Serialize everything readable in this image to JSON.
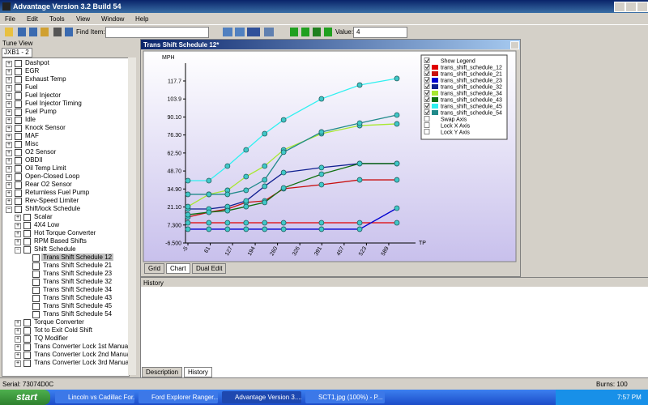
{
  "window": {
    "title": "Advantage Version 3.2 Build 54"
  },
  "menu": [
    "File",
    "Edit",
    "Tools",
    "View",
    "Window",
    "Help"
  ],
  "toolbar": {
    "find_label": "Find Item:",
    "value_label": "Value:",
    "value": "4"
  },
  "tree_view": {
    "title": "Tune View",
    "tab": "JXB1 - 2",
    "items": [
      {
        "label": "Dashpot"
      },
      {
        "label": "EGR"
      },
      {
        "label": "Exhaust Temp"
      },
      {
        "label": "Fuel"
      },
      {
        "label": "Fuel Injector"
      },
      {
        "label": "Fuel Injector Timing"
      },
      {
        "label": "Fuel Pump"
      },
      {
        "label": "Idle"
      },
      {
        "label": "Knock Sensor"
      },
      {
        "label": "MAF"
      },
      {
        "label": "Misc"
      },
      {
        "label": "O2 Sensor"
      },
      {
        "label": "OBDII"
      },
      {
        "label": "Oil Temp Limit"
      },
      {
        "label": "Open-Closed Loop"
      },
      {
        "label": "Rear O2 Sensor"
      },
      {
        "label": "Returnless Fuel Pump"
      },
      {
        "label": "Rev-Speed Limiter"
      },
      {
        "label": "Shift/lock Schedule",
        "children": [
          {
            "label": "Scalar"
          },
          {
            "label": "4X4 Low"
          },
          {
            "label": "Hot Torque Converter"
          },
          {
            "label": "RPM Based Shifts"
          },
          {
            "label": "Shift Schedule",
            "children": [
              {
                "label": "Trans Shift Schedule 12"
              },
              {
                "label": "Trans Shift Schedule 21"
              },
              {
                "label": "Trans Shift Schedule 23"
              },
              {
                "label": "Trans Shift Schedule 32"
              },
              {
                "label": "Trans Shift Schedule 34"
              },
              {
                "label": "Trans Shift Schedule 43"
              },
              {
                "label": "Trans Shift Schedule 45"
              },
              {
                "label": "Trans Shift Schedule 54"
              }
            ]
          },
          {
            "label": "Torque Converter"
          },
          {
            "label": "Tot to Exit Cold Shift"
          },
          {
            "label": "TQ Modifier"
          },
          {
            "label": "Trans Converter Lock 1st Manual Shift"
          },
          {
            "label": "Trans Converter Lock 2nd Manual Shift"
          },
          {
            "label": "Trans Converter Lock 3rd Manual Shift"
          }
        ]
      }
    ]
  },
  "chart_window": {
    "title": "Trans Shift Schedule 12*",
    "tabs": [
      "Grid",
      "Chart",
      "Dual Edit"
    ],
    "legend_toggle": "Show Legend",
    "options": [
      "Swap Axis",
      "Lock X Axis",
      "Lock Y Axis"
    ]
  },
  "chart_data": {
    "type": "line",
    "y_label": "MPH",
    "x_label": "TP",
    "x": [
      -5,
      57,
      112,
      167,
      222,
      278,
      390,
      503,
      613
    ],
    "xlim": [
      -5,
      661
    ],
    "ylim": [
      -6.5,
      130.1
    ],
    "xticks": [
      -5,
      61,
      127,
      194,
      260,
      326,
      391,
      457,
      523,
      589
    ],
    "yticks": [
      {
        "value": -6.5,
        "label": "-6.500"
      },
      {
        "value": 7.3,
        "label": "7.300"
      },
      {
        "value": 21.1,
        "label": "21.10"
      },
      {
        "value": 34.9,
        "label": "34.90"
      },
      {
        "value": 48.7,
        "label": "48.70"
      },
      {
        "value": 62.5,
        "label": "62.50"
      },
      {
        "value": 76.3,
        "label": "76.30"
      },
      {
        "value": 90.1,
        "label": "90.10"
      },
      103.9,
      117.7
    ],
    "grid": false,
    "marker_color": "#40c8c8",
    "series": [
      {
        "name": "trans_shift_schedule_12",
        "color": "#e00000",
        "values": [
          9.0,
          9.0,
          9.0,
          9.0,
          9.0,
          9.0,
          9.0,
          9.0,
          9.0
        ]
      },
      {
        "name": "trans_shift_schedule_21",
        "color": "#c81010",
        "values": [
          13.4,
          17.1,
          19.6,
          24.6,
          25.8,
          35.1,
          38.2,
          41.9,
          41.9
        ]
      },
      {
        "name": "trans_shift_schedule_23",
        "color": "#0000d0",
        "values": [
          4.1,
          4.1,
          4.1,
          4.1,
          4.1,
          4.1,
          4.1,
          4.1,
          20.2
        ]
      },
      {
        "name": "trans_shift_schedule_32",
        "color": "#102090",
        "values": [
          19.6,
          19.6,
          21.4,
          25.8,
          37.0,
          47.5,
          51.3,
          54.4,
          54.4
        ]
      },
      {
        "name": "trans_shift_schedule_34",
        "color": "#a8e830",
        "values": [
          21.4,
          30.8,
          33.9,
          44.4,
          52.5,
          64.9,
          77.3,
          83.5,
          84.8
        ]
      },
      {
        "name": "trans_shift_schedule_43",
        "color": "#107010",
        "values": [
          15.2,
          17.1,
          18.3,
          21.4,
          24.6,
          35.7,
          46.3,
          54.4,
          54.4
        ]
      },
      {
        "name": "trans_shift_schedule_45",
        "color": "#30f0f0",
        "values": [
          41.3,
          41.3,
          52.5,
          64.9,
          77.3,
          87.9,
          104.0,
          114.6,
          119.6
        ]
      },
      {
        "name": "trans_shift_schedule_54",
        "color": "#208a8a",
        "values": [
          30.8,
          30.8,
          30.8,
          33.9,
          41.9,
          63.1,
          78.6,
          85.4,
          91.6
        ]
      }
    ]
  },
  "history": {
    "title": "History",
    "tabs": [
      "Description",
      "History"
    ]
  },
  "status_bar": {
    "serial": "Serial: 73074D0C",
    "burns": "Burns: 100"
  },
  "taskbar": {
    "start": "start",
    "tasks": [
      "Lincoln vs Cadillac For...",
      "Ford Explorer Ranger...",
      "Advantage Version 3....",
      "SCT1.jpg (100%) - P..."
    ],
    "clock": "7:57 PM"
  }
}
